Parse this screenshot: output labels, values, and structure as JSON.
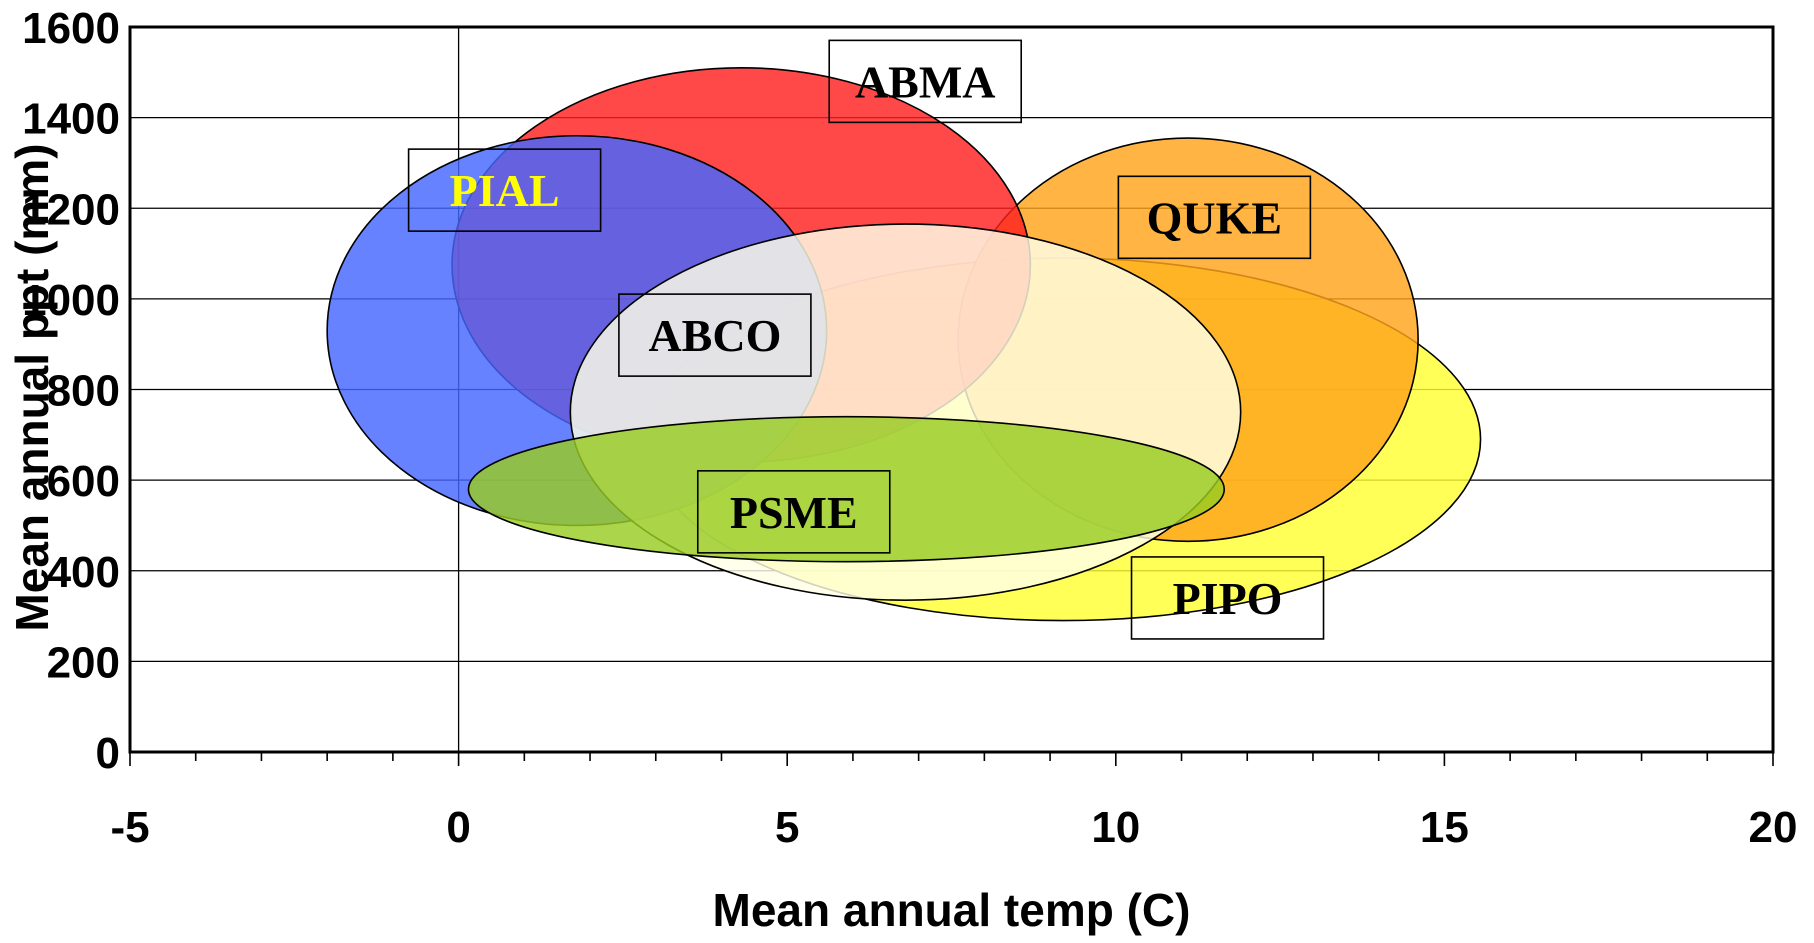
{
  "chart_data": {
    "type": "ellipse-range",
    "title": "",
    "xlabel": "Mean annual temp (C)",
    "ylabel": "Mean annual ppt (mm)",
    "xlim": [
      -5,
      20
    ],
    "ylim": [
      0,
      1600
    ],
    "x_ticks": [
      "-5",
      "0",
      "5",
      "10",
      "15",
      "20"
    ],
    "y_ticks": [
      "0",
      "200",
      "400",
      "600",
      "800",
      "1000",
      "1200",
      "1400",
      "1600"
    ],
    "x_tick_values": [
      -5,
      0,
      5,
      10,
      15,
      20
    ],
    "y_tick_values": [
      0,
      200,
      400,
      600,
      800,
      1000,
      1200,
      1400,
      1600
    ],
    "x_minor_step": 1,
    "grid": "horizontal major gridlines",
    "series": [
      {
        "name": "PIPO",
        "color": "#ffff33",
        "center": [
          9.2,
          690
        ],
        "x_range": [
          2.8,
          15.5
        ],
        "y_range": [
          290,
          1090
        ],
        "label_at": [
          11.7,
          340
        ]
      },
      {
        "name": "QUKE",
        "color": "#ffa31a",
        "center": [
          11.1,
          910
        ],
        "x_range": [
          7.6,
          14.6
        ],
        "y_range": [
          465,
          1355
        ],
        "label_at": [
          11.5,
          1180
        ]
      },
      {
        "name": "ABMA",
        "color": "#ff2020",
        "center": [
          4.3,
          1075
        ],
        "x_range": [
          -0.1,
          8.7
        ],
        "y_range": [
          640,
          1510
        ],
        "label_at": [
          7.1,
          1480
        ]
      },
      {
        "name": "PIAL",
        "color": "#4466ff",
        "center": [
          1.8,
          930
        ],
        "x_range": [
          -2.0,
          5.6
        ],
        "y_range": [
          500,
          1360
        ],
        "label_at": [
          0.7,
          1240
        ]
      },
      {
        "name": "ABCO",
        "color": "#ffffe8",
        "center": [
          6.8,
          750
        ],
        "x_range": [
          1.7,
          11.9
        ],
        "y_range": [
          335,
          1165
        ],
        "label_at": [
          3.9,
          920
        ]
      },
      {
        "name": "PSME",
        "color": "#99cc22",
        "center": [
          5.9,
          580
        ],
        "x_range": [
          0.1,
          11.6
        ],
        "y_range": [
          420,
          740
        ],
        "label_at": [
          5.1,
          530
        ]
      }
    ]
  }
}
